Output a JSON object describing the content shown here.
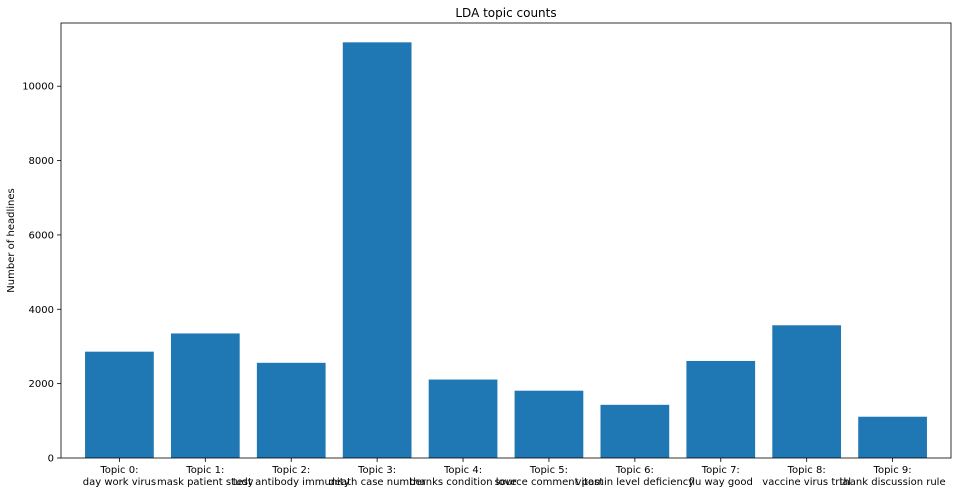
{
  "chart_data": {
    "type": "bar",
    "title": "LDA topic counts",
    "xlabel": "",
    "ylabel": "Number of headlines",
    "categories": [
      [
        "Topic 0:",
        "day work virus"
      ],
      [
        "Topic 1:",
        "mask patient study"
      ],
      [
        "Topic 2:",
        "test antibody immunity"
      ],
      [
        "Topic 3:",
        "death case number"
      ],
      [
        "Topic 4:",
        "thanks condition love"
      ],
      [
        "Topic 5:",
        "source comment post"
      ],
      [
        "Topic 6:",
        "vitamin level deficiency"
      ],
      [
        "Topic 7:",
        "flu way good"
      ],
      [
        "Topic 8:",
        "vaccine virus trial"
      ],
      [
        "Topic 9:",
        "thank discussion rule"
      ]
    ],
    "values": [
      2860,
      3350,
      2560,
      11180,
      2110,
      1810,
      1430,
      2610,
      3570,
      1110
    ],
    "ylim": [
      0,
      11700
    ],
    "yticks": [
      0,
      2000,
      4000,
      6000,
      8000,
      10000
    ],
    "bar_color": "#1f77b4",
    "grid": false,
    "legend": "none"
  }
}
